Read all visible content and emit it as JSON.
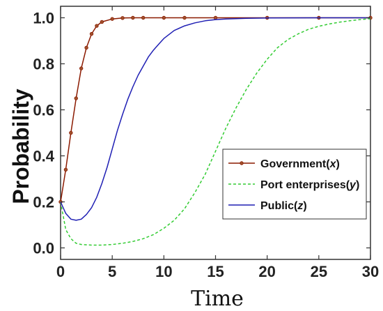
{
  "chart_data": {
    "type": "line",
    "xlabel": "Time",
    "ylabel": "Probability",
    "xlim": [
      0,
      30
    ],
    "ylim": [
      -0.05,
      1.05
    ],
    "x_ticks": [
      "0",
      "5",
      "10",
      "15",
      "20",
      "25",
      "30"
    ],
    "y_ticks": [
      "0.0",
      "0.2",
      "0.4",
      "0.6",
      "0.8",
      "1.0"
    ],
    "grid": false,
    "legend_position": "center-right",
    "series": [
      {
        "name": "Government(x)",
        "label_main": "Government(",
        "label_var": "x",
        "label_close": ")",
        "color": "#8B1A00",
        "marker_color": "#a0522d",
        "style": "solid-with-markers",
        "x": [
          0,
          0.5,
          1,
          1.5,
          2,
          2.5,
          3,
          3.5,
          4,
          5,
          6,
          7,
          8,
          10,
          12,
          15,
          20,
          25,
          30
        ],
        "y": [
          0.2,
          0.34,
          0.5,
          0.65,
          0.78,
          0.87,
          0.93,
          0.965,
          0.982,
          0.995,
          0.999,
          1.0,
          1.0,
          1.0,
          1.0,
          1.0,
          1.0,
          1.0,
          1.0
        ]
      },
      {
        "name": "Port enterprises(y)",
        "label_main": "Port enterprises(",
        "label_var": "y",
        "label_close": ")",
        "color": "#33cc33",
        "style": "dashed",
        "x": [
          0,
          0.5,
          1,
          1.5,
          2,
          3,
          4,
          5,
          6,
          7,
          8,
          9,
          10,
          11,
          12,
          13,
          14,
          15,
          16,
          17,
          18,
          19,
          20,
          21,
          22,
          23,
          24,
          25,
          26,
          27,
          28,
          29,
          30
        ],
        "y": [
          0.2,
          0.08,
          0.04,
          0.02,
          0.015,
          0.012,
          0.012,
          0.015,
          0.02,
          0.028,
          0.04,
          0.058,
          0.085,
          0.12,
          0.17,
          0.24,
          0.32,
          0.42,
          0.52,
          0.61,
          0.69,
          0.76,
          0.82,
          0.87,
          0.905,
          0.93,
          0.95,
          0.963,
          0.973,
          0.981,
          0.987,
          0.992,
          0.996
        ]
      },
      {
        "name": "Public(z)",
        "label_main": "Public(",
        "label_var": "z",
        "label_close": ")",
        "color": "#1f1fb4",
        "style": "solid",
        "x": [
          0,
          0.5,
          1,
          1.5,
          2,
          2.5,
          3,
          3.5,
          4,
          4.5,
          5,
          5.5,
          6,
          6.5,
          7,
          7.5,
          8,
          8.5,
          9,
          9.5,
          10,
          11,
          12,
          13,
          14,
          15,
          16,
          18,
          20,
          25,
          30
        ],
        "y": [
          0.2,
          0.15,
          0.125,
          0.12,
          0.125,
          0.145,
          0.175,
          0.22,
          0.28,
          0.35,
          0.43,
          0.51,
          0.58,
          0.645,
          0.7,
          0.75,
          0.79,
          0.83,
          0.86,
          0.885,
          0.91,
          0.945,
          0.965,
          0.978,
          0.987,
          0.992,
          0.995,
          0.998,
          0.999,
          1.0,
          1.0
        ]
      }
    ]
  }
}
